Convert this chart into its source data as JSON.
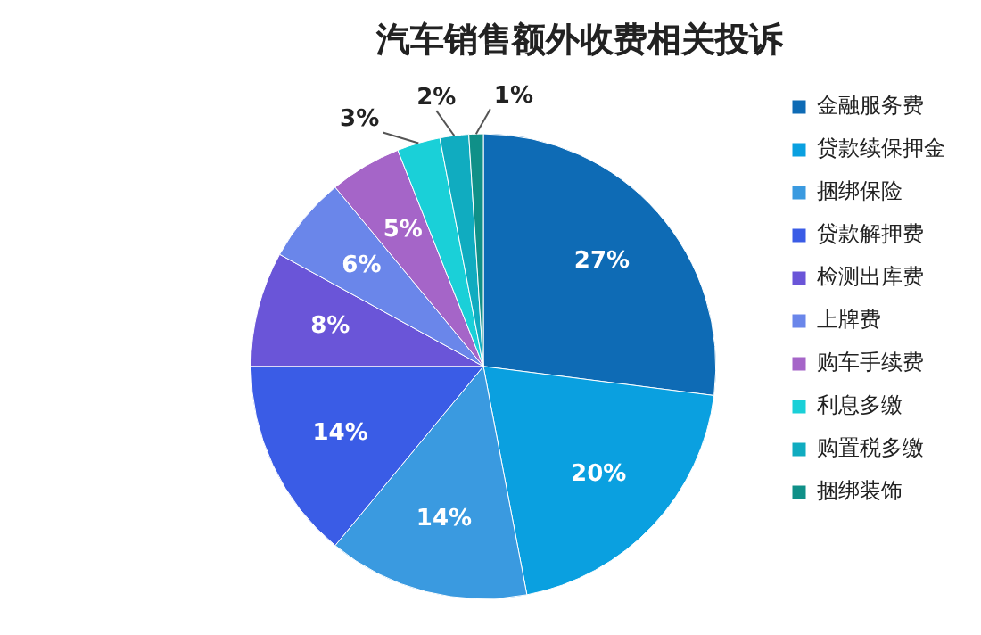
{
  "chart_data": {
    "type": "pie",
    "title": "汽车销售额外收费相关投诉",
    "categories": [
      "金融服务费",
      "贷款续保押金",
      "捆绑保险",
      "贷款解押费",
      "检测出库费",
      "上牌费",
      "购车手续费",
      "利息多缴",
      "购置税多缴",
      "捆绑装饰"
    ],
    "values": [
      27,
      20,
      14,
      14,
      8,
      6,
      5,
      3,
      2,
      1
    ],
    "value_labels": [
      "27%",
      "20%",
      "14%",
      "14%",
      "8%",
      "6%",
      "5%",
      "3%",
      "2%",
      "1%"
    ],
    "colors": [
      "#0e6bb5",
      "#0aa0e0",
      "#3a9ae0",
      "#3a5ce6",
      "#6a55d8",
      "#6a86ea",
      "#a565c8",
      "#1ad0d8",
      "#10acc0",
      "#109088"
    ],
    "legend": "right"
  }
}
